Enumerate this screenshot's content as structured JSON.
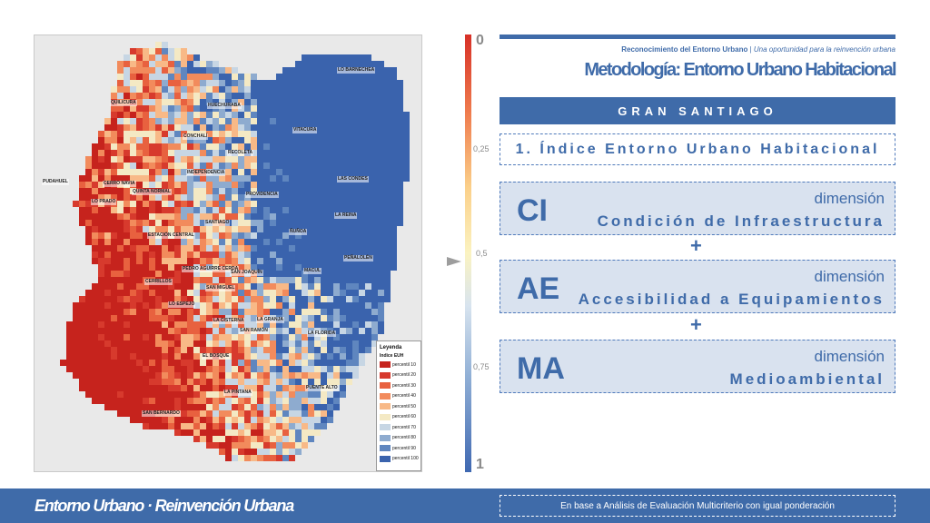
{
  "map": {
    "places": [
      "LO BARNECHEA",
      "QUILICURA",
      "HUECHURABA",
      "CONCHALÍ",
      "VITACURA",
      "RECOLETA",
      "INDEPENDENCIA",
      "LAS CONDES",
      "QUINTA NORMAL",
      "PROVIDENCIA",
      "PUDAHUEL",
      "CERRO NAVIA",
      "LO PRADO",
      "SANTIAGO",
      "ÑUÑOA",
      "LA REINA",
      "ESTACIÓN CENTRAL",
      "PEÑALOLÉN",
      "PEDRO AGUIRRE CERDA",
      "SAN JOAQUÍN",
      "CERRILLOS",
      "SAN MIGUEL",
      "MACUL",
      "LO ESPEJO",
      "LA CISTERNA",
      "LA GRANJA",
      "SAN RAMÓN",
      "LA FLORIDA",
      "EL BOSQUE",
      "PUENTE ALTO",
      "LA PINTANA",
      "SAN BERNARDO"
    ],
    "legend": {
      "title": "Leyenda",
      "subtitle": "Indice EUH",
      "items": [
        "percentil 10",
        "percentil 20",
        "percentil 30",
        "percentil 40",
        "percentil 50",
        "percentil 60",
        "percentil 70",
        "percentil 80",
        "percentil 90",
        "percentil 100"
      ],
      "colors": [
        "#c6231d",
        "#d73a2d",
        "#e8613f",
        "#f28b5c",
        "#f8b987",
        "#f4e9c4",
        "#c7d6e4",
        "#8eabcf",
        "#5f86bf",
        "#3a63ad"
      ]
    }
  },
  "scale": {
    "top": "0",
    "q1": "0,25",
    "mid": "0,5",
    "q3": "0,75",
    "bottom": "1"
  },
  "header": {
    "subtitle_bold": "Reconocimiento del Entorno Urbano",
    "subtitle_sep": " | ",
    "subtitle_italic": "Una oportunidad para la reinvención urbana",
    "title": "Metodología: Entorno Urbano Habitacional"
  },
  "region": "GRAN SANTIAGO",
  "index_title": "1. Índice Entorno Urbano Habitacional",
  "dimensions": [
    {
      "code": "CI",
      "kicker": "dimensión",
      "name": "Condición de Infraestructura"
    },
    {
      "code": "AE",
      "kicker": "dimensión",
      "name": "Accesibilidad a Equipamientos"
    },
    {
      "code": "MA",
      "kicker": "dimensión",
      "name": "Medioambiental"
    }
  ],
  "plus": "+",
  "footer": {
    "brand": "Entorno Urbano · Reinvención Urbana",
    "note": "En base a Análisis de Evaluación Multicriterio con igual ponderación"
  },
  "colors": {
    "accent": "#3f6ba9",
    "panel": "#d9e2ef"
  }
}
